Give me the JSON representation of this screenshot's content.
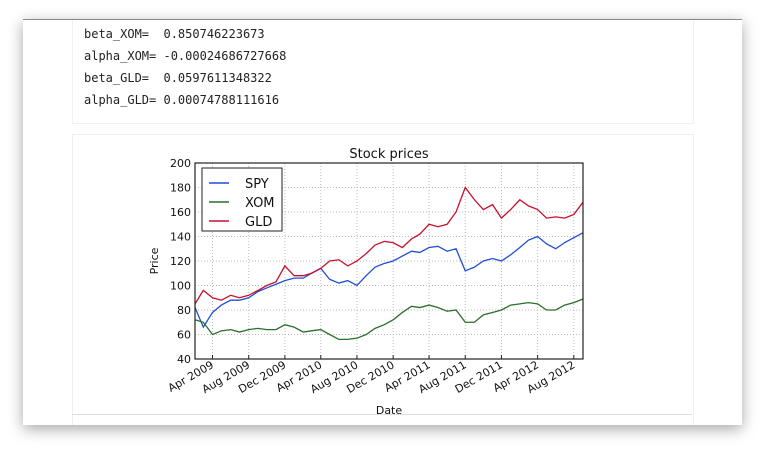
{
  "output_lines": [
    {
      "label": "beta_XOM=  ",
      "value": "0.850746223673"
    },
    {
      "label": "alpha_XOM= ",
      "value": "-0.00024686727668"
    },
    {
      "label": "beta_GLD=  ",
      "value": "0.0597611348322"
    },
    {
      "label": "alpha_GLD= ",
      "value": "0.00074788111616"
    }
  ],
  "chart_data": {
    "type": "line",
    "title": "Stock prices",
    "xlabel": "Date",
    "ylabel": "Price",
    "ylim": [
      40,
      200
    ],
    "yticks": [
      40,
      60,
      80,
      100,
      120,
      140,
      160,
      180,
      200
    ],
    "xlim": [
      "2009-02-15",
      "2012-09-15"
    ],
    "xticks": [
      "2009-04",
      "2009-08",
      "2009-12",
      "2010-04",
      "2010-08",
      "2010-12",
      "2011-04",
      "2011-08",
      "2011-12",
      "2012-04",
      "2012-08"
    ],
    "xtick_labels": [
      "Apr 2009",
      "Aug 2009",
      "Dec 2009",
      "Apr 2010",
      "Aug 2010",
      "Dec 2010",
      "Apr 2011",
      "Aug 2011",
      "Dec 2011",
      "Apr 2012",
      "Aug 2012"
    ],
    "grid": true,
    "legend_position": "top-left",
    "x": [
      "2009-02",
      "2009-03",
      "2009-04",
      "2009-05",
      "2009-06",
      "2009-07",
      "2009-08",
      "2009-09",
      "2009-10",
      "2009-11",
      "2009-12",
      "2010-01",
      "2010-02",
      "2010-03",
      "2010-04",
      "2010-05",
      "2010-06",
      "2010-07",
      "2010-08",
      "2010-09",
      "2010-10",
      "2010-11",
      "2010-12",
      "2011-01",
      "2011-02",
      "2011-03",
      "2011-04",
      "2011-05",
      "2011-06",
      "2011-07",
      "2011-08",
      "2011-09",
      "2011-10",
      "2011-11",
      "2011-12",
      "2012-01",
      "2012-02",
      "2012-03",
      "2012-04",
      "2012-05",
      "2012-06",
      "2012-07",
      "2012-08",
      "2012-09"
    ],
    "series": [
      {
        "name": "SPY",
        "color": "#1f4fd6",
        "values": [
          82,
          66,
          78,
          84,
          88,
          88,
          90,
          95,
          98,
          101,
          104,
          106,
          106,
          110,
          114,
          105,
          102,
          104,
          100,
          108,
          115,
          118,
          120,
          124,
          128,
          127,
          131,
          132,
          128,
          130,
          112,
          115,
          120,
          122,
          120,
          125,
          131,
          137,
          140,
          134,
          130,
          135,
          139,
          143
        ]
      },
      {
        "name": "XOM",
        "color": "#2a6e2a",
        "values": [
          72,
          70,
          60,
          63,
          64,
          62,
          64,
          65,
          64,
          64,
          68,
          66,
          62,
          63,
          64,
          60,
          56,
          56,
          57,
          60,
          65,
          68,
          72,
          78,
          83,
          82,
          84,
          82,
          79,
          80,
          70,
          70,
          76,
          78,
          80,
          84,
          85,
          86,
          85,
          80,
          80,
          84,
          86,
          89
        ]
      },
      {
        "name": "GLD",
        "color": "#c8102e",
        "values": [
          85,
          96,
          90,
          88,
          92,
          90,
          92,
          96,
          100,
          103,
          116,
          108,
          108,
          110,
          114,
          120,
          121,
          116,
          120,
          126,
          133,
          136,
          135,
          131,
          138,
          142,
          150,
          148,
          150,
          160,
          180,
          170,
          162,
          166,
          155,
          162,
          170,
          165,
          162,
          155,
          156,
          155,
          158,
          168
        ]
      }
    ]
  }
}
